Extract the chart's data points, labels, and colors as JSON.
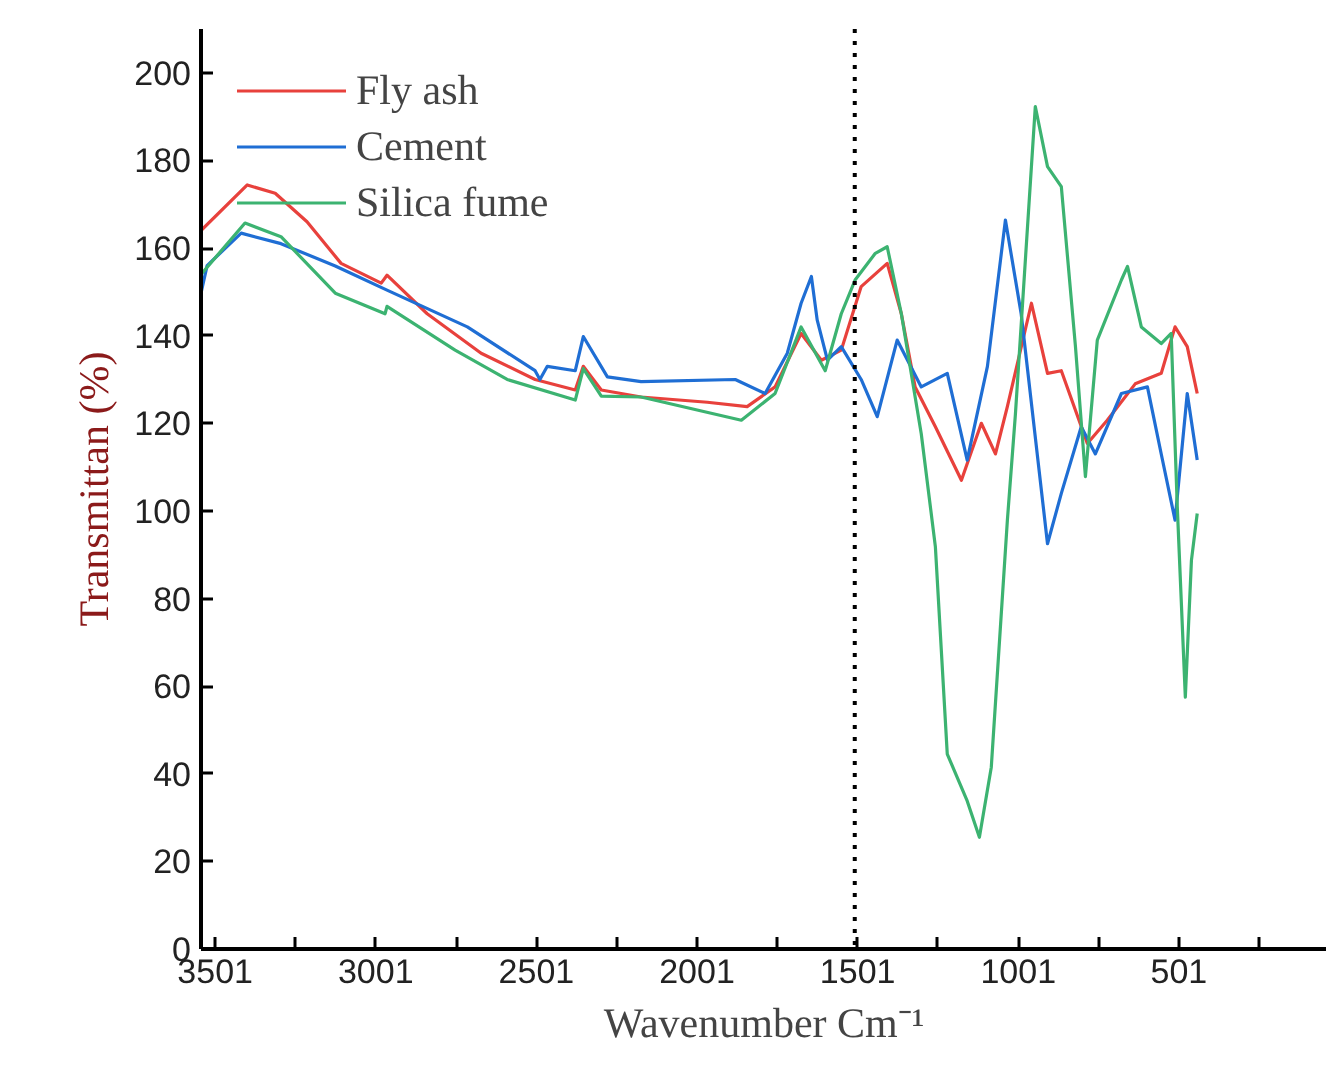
{
  "chart_data": {
    "type": "line",
    "xlabel": "Wavenumber Cm⁻¹",
    "ylabel": "Transmittan (%)",
    "xlim": [
      3545,
      40
    ],
    "ylim": [
      0,
      210
    ],
    "xticks": [
      3501,
      {
        "value": 3251,
        "label": null
      },
      3001,
      {
        "value": 2751,
        "label": null
      },
      2501,
      {
        "value": 2251,
        "label": null
      },
      2001,
      {
        "value": 1751,
        "label": null
      },
      1501,
      {
        "value": 1251,
        "label": null
      },
      1001,
      {
        "value": 751,
        "label": null
      },
      501,
      {
        "value": 251,
        "label": null
      }
    ],
    "yticks": [
      0,
      20,
      40,
      60,
      80,
      100,
      120,
      140,
      160,
      180,
      200
    ],
    "grid": false,
    "legend": "top left",
    "marker": "none",
    "line_style": "solid",
    "ref_lines": [
      {
        "axis": "x",
        "value": 1510,
        "line_style": "dotted",
        "color": "#000000"
      }
    ],
    "series": [
      {
        "name": "Fly ash",
        "color": "#e8413c",
        "x": [
          3545,
          3401,
          3314,
          3215,
          3109,
          2984,
          2966,
          2841,
          2673,
          2505,
          2380,
          2355,
          2299,
          2175,
          1969,
          1845,
          1758,
          1677,
          1614,
          1552,
          1490,
          1409,
          1365,
          1322,
          1259,
          1178,
          1116,
          1072,
          1035,
          960,
          910,
          867,
          786,
          724,
          637,
          556,
          513,
          475,
          444
        ],
        "values": [
          164,
          174.4,
          172.5,
          166,
          156.5,
          152,
          153.8,
          145,
          136,
          130,
          127.6,
          133,
          127.6,
          126,
          124.8,
          123.8,
          128.3,
          140.5,
          134.4,
          136.7,
          151.2,
          156.5,
          145,
          128.3,
          119.2,
          107,
          120,
          113,
          123.8,
          147.4,
          131.4,
          132,
          115.4,
          120.7,
          129,
          131.4,
          142,
          137.5,
          126.8
        ]
      },
      {
        "name": "Cement",
        "color": "#1f6ed4",
        "x": [
          3545,
          3526,
          3420,
          3296,
          3127,
          2966,
          2716,
          2505,
          2490,
          2467,
          2380,
          2355,
          2280,
          2175,
          1882,
          1789,
          1720,
          1677,
          1645,
          1627,
          1595,
          1552,
          1490,
          1440,
          1378,
          1303,
          1222,
          1160,
          1097,
          1041,
          992,
          910,
          867,
          805,
          761,
          680,
          599,
          556,
          513,
          475,
          444
        ],
        "values": [
          149.7,
          156,
          163.4,
          161,
          155.9,
          150.4,
          142,
          132,
          130,
          133,
          132,
          139.8,
          130.6,
          129.5,
          130,
          126.8,
          136,
          147.4,
          153.5,
          143.6,
          134.4,
          137.5,
          130,
          121.5,
          139,
          128.3,
          131.4,
          111.6,
          133,
          166.4,
          145,
          92.5,
          104,
          119.2,
          113,
          126.8,
          128.3,
          113,
          97.9,
          126.8,
          111.6
        ]
      },
      {
        "name": "Silica fume",
        "color": "#3cb371",
        "x": [
          3545,
          3408,
          3296,
          3127,
          2972,
          2966,
          2754,
          2592,
          2380,
          2355,
          2299,
          2175,
          1863,
          1758,
          1677,
          1602,
          1552,
          1509,
          1446,
          1409,
          1365,
          1303,
          1259,
          1222,
          1160,
          1122,
          1085,
          1035,
          1010,
          948,
          910,
          867,
          823,
          792,
          755,
          680,
          661,
          618,
          556,
          525,
          506,
          481,
          462,
          444
        ],
        "values": [
          154,
          165.7,
          162.6,
          149.7,
          145,
          146.7,
          136.7,
          130,
          125.3,
          132.5,
          126.2,
          126,
          120.7,
          126.8,
          142,
          132,
          145,
          152.7,
          158.8,
          160.3,
          145,
          117.6,
          91.8,
          44.5,
          33.8,
          25.5,
          41.5,
          97.8,
          122,
          192.3,
          178.6,
          174,
          137.5,
          107.8,
          139,
          152.7,
          155.8,
          142,
          138.2,
          140.5,
          100.9,
          57.5,
          88.7,
          99.4
        ]
      }
    ]
  }
}
